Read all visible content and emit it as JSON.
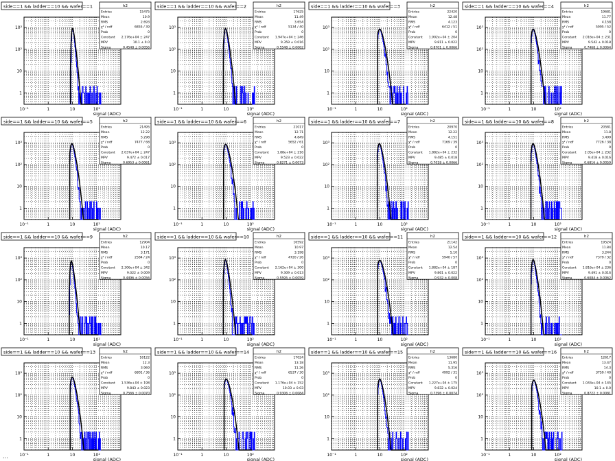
{
  "page": {
    "footer_text": "..."
  },
  "colors": {
    "histogram": "#0000ff",
    "fit": "#000000",
    "grid": "#000000",
    "background": "#ffffff"
  },
  "chart_data": [
    {
      "type": "histogram",
      "title": "side==1 && ladder==10 && wafer==1",
      "stats_name": "h2",
      "stats": [
        [
          "Entries",
          "15475"
        ],
        [
          "Mean",
          "10.9"
        ],
        [
          "RMS",
          "2.693"
        ],
        [
          "χ² / ndf",
          "6855 / 39"
        ],
        [
          "Prob",
          "0"
        ],
        [
          "Constant",
          "2.176e+04 ± 247"
        ],
        [
          "MPV",
          "10.1 ± 0.0"
        ],
        [
          "Sigma",
          "0.4548 ± 0.0056"
        ]
      ],
      "xlabel": "signal (ADC)",
      "xscale": "log",
      "yscale": "log",
      "xlim": [
        0.1,
        1000
      ],
      "ylim": [
        0.3,
        3000
      ],
      "xticks": [
        "10⁻¹",
        "1",
        "10",
        "10²"
      ],
      "yticks": [
        "1",
        "10",
        "10²",
        "10³"
      ],
      "grid": true,
      "mpv": 10.1,
      "sigma": 0.455,
      "peak": 1500
    },
    {
      "type": "histogram",
      "title": "side==1 && ladder==10 && wafer==2",
      "stats_name": "h2",
      "stats": [
        [
          "Entries",
          "17625"
        ],
        [
          "Mean",
          "11.49"
        ],
        [
          "RMS",
          "3.654"
        ],
        [
          "χ² / ndf",
          "5134 / 40"
        ],
        [
          "Prob",
          "0"
        ],
        [
          "Constant",
          "1.947e+04 ± 246"
        ],
        [
          "MPV",
          "9.359 ± 0.016"
        ],
        [
          "Sigma",
          "0.5548 ± 0.0062"
        ]
      ],
      "xlabel": "signal (ADC)",
      "xscale": "log",
      "yscale": "log",
      "xlim": [
        0.1,
        1000
      ],
      "ylim": [
        0.3,
        3000
      ],
      "xticks": [
        "10⁻¹",
        "1",
        "10",
        "10²"
      ],
      "yticks": [
        "1",
        "10",
        "10²",
        "10³"
      ],
      "grid": true,
      "mpv": 9.36,
      "sigma": 0.555,
      "peak": 1500
    },
    {
      "type": "histogram",
      "title": "side==1 && ladder==10 && wafer==3",
      "stats_name": "h2",
      "stats": [
        [
          "Entries",
          "22420"
        ],
        [
          "Mean",
          "12.48"
        ],
        [
          "RMS",
          "4.123"
        ],
        [
          "χ² / ndf",
          "6412 / 51"
        ],
        [
          "Prob",
          "0"
        ],
        [
          "Constant",
          "1.902e+04 ± 204"
        ],
        [
          "MPV",
          "9.811 ± 0.022"
        ],
        [
          "Sigma",
          "0.8701 ± 0.0066"
        ]
      ],
      "xlabel": "signal (ADC)",
      "xscale": "log",
      "yscale": "log",
      "xlim": [
        0.1,
        1000
      ],
      "ylim": [
        0.3,
        3000
      ],
      "xticks": [
        "10⁻¹",
        "1",
        "10",
        "10²"
      ],
      "yticks": [
        "1",
        "10",
        "10²",
        "10³"
      ],
      "grid": true,
      "mpv": 9.81,
      "sigma": 0.87,
      "peak": 1400
    },
    {
      "type": "histogram",
      "title": "side==1 && ladder==10 && wafer==4",
      "stats_name": "h2",
      "stats": [
        [
          "Entries",
          "19681"
        ],
        [
          "Mean",
          "11.77"
        ],
        [
          "RMS",
          "4.158"
        ],
        [
          "χ² / ndf",
          "5995 / 52"
        ],
        [
          "Prob",
          "0"
        ],
        [
          "Constant",
          "2.016e+04 ± 231"
        ],
        [
          "MPV",
          "9.542 ± 0.018"
        ],
        [
          "Sigma",
          "0.7468 ± 0.0064"
        ]
      ],
      "xlabel": "signal (ADC)",
      "xscale": "log",
      "yscale": "log",
      "xlim": [
        0.1,
        1000
      ],
      "ylim": [
        0.3,
        3000
      ],
      "xticks": [
        "10⁻¹",
        "1",
        "10",
        "10²"
      ],
      "yticks": [
        "1",
        "10",
        "10²",
        "10³"
      ],
      "grid": true,
      "mpv": 9.54,
      "sigma": 0.747,
      "peak": 1400
    },
    {
      "type": "histogram",
      "title": "side==1 && ladder==10 && wafer==5",
      "stats_name": "h2",
      "stats": [
        [
          "Entries",
          "21495"
        ],
        [
          "Mean",
          "12.22"
        ],
        [
          "RMS",
          "5.298"
        ],
        [
          "χ² / ndf",
          "7477 / 68"
        ],
        [
          "Prob",
          "0"
        ],
        [
          "Constant",
          "2.037e+04 ± 247"
        ],
        [
          "MPV",
          "9.472 ± 0.017"
        ],
        [
          "Sigma",
          "0.6953 ± 0.0061"
        ]
      ],
      "xlabel": "signal (ADC)",
      "xscale": "log",
      "yscale": "log",
      "xlim": [
        0.1,
        1000
      ],
      "ylim": [
        0.3,
        3000
      ],
      "xticks": [
        "10⁻¹",
        "1",
        "10",
        "10²"
      ],
      "yticks": [
        "1",
        "10",
        "10²",
        "10³"
      ],
      "grid": true,
      "mpv": 9.47,
      "sigma": 0.695,
      "peak": 1500
    },
    {
      "type": "histogram",
      "title": "side==1 && ladder==10 && wafer==6",
      "stats_name": "h2",
      "stats": [
        [
          "Entries",
          "21017"
        ],
        [
          "Mean",
          "12.71"
        ],
        [
          "RMS",
          "4.849"
        ],
        [
          "χ² / ndf",
          "5652 / 61"
        ],
        [
          "Prob",
          "0"
        ],
        [
          "Constant",
          "1.88e+04 ± 216"
        ],
        [
          "MPV",
          "9.523 ± 0.022"
        ],
        [
          "Sigma",
          "0.8271 ± 0.0073"
        ]
      ],
      "xlabel": "signal (ADC)",
      "xscale": "log",
      "yscale": "log",
      "xlim": [
        0.1,
        1000
      ],
      "ylim": [
        0.3,
        3000
      ],
      "xticks": [
        "10⁻¹",
        "1",
        "10",
        "10²"
      ],
      "yticks": [
        "1",
        "10",
        "10²",
        "10³"
      ],
      "grid": true,
      "mpv": 9.52,
      "sigma": 0.827,
      "peak": 1400
    },
    {
      "type": "histogram",
      "title": "side==1 && ladder==10 && wafer==7",
      "stats_name": "h2",
      "stats": [
        [
          "Entries",
          "20970"
        ],
        [
          "Mean",
          "12.22"
        ],
        [
          "RMS",
          "4.151"
        ],
        [
          "χ² / ndf",
          "7169 / 39"
        ],
        [
          "Prob",
          "0"
        ],
        [
          "Constant",
          "1.882e+04 ± 232"
        ],
        [
          "MPV",
          "9.485 ± 0.018"
        ],
        [
          "Sigma",
          "0.7018 ± 0.0066"
        ]
      ],
      "xlabel": "signal (ADC)",
      "xscale": "log",
      "yscale": "log",
      "xlim": [
        0.1,
        1000
      ],
      "ylim": [
        0.3,
        3000
      ],
      "xticks": [
        "10⁻¹",
        "1",
        "10",
        "10²"
      ],
      "yticks": [
        "1",
        "10",
        "10²",
        "10³"
      ],
      "grid": true,
      "mpv": 9.49,
      "sigma": 0.702,
      "peak": 1500
    },
    {
      "type": "histogram",
      "title": "side==1 && ladder==10 && wafer==8",
      "stats_name": "h2",
      "stats": [
        [
          "Entries",
          "20581"
        ],
        [
          "Mean",
          "11.8"
        ],
        [
          "RMS",
          "3.499"
        ],
        [
          "χ² / ndf",
          "7726 / 38"
        ],
        [
          "Prob",
          "0"
        ],
        [
          "Constant",
          "2.05e+04 ± 232"
        ],
        [
          "MPV",
          "9.418 ± 0.016"
        ],
        [
          "Sigma",
          "0.6816 ± 0.0059"
        ]
      ],
      "xlabel": "signal (ADC)",
      "xscale": "log",
      "yscale": "log",
      "xlim": [
        0.1,
        1000
      ],
      "ylim": [
        0.3,
        3000
      ],
      "xticks": [
        "10⁻¹",
        "1",
        "10",
        "10²"
      ],
      "yticks": [
        "1",
        "10",
        "10²",
        "10³"
      ],
      "grid": true,
      "mpv": 9.42,
      "sigma": 0.682,
      "peak": 1500
    },
    {
      "type": "histogram",
      "title": "side==1 && ladder==10 && wafer==9",
      "stats_name": "h2",
      "stats": [
        [
          "Entries",
          "12904"
        ],
        [
          "Mean",
          "10.17"
        ],
        [
          "RMS",
          "3.171"
        ],
        [
          "χ² / ndf",
          "2584 / 24"
        ],
        [
          "Prob",
          "0"
        ],
        [
          "Constant",
          "2.306e+04 ± 342"
        ],
        [
          "MPV",
          "9.022 ± 0.009"
        ],
        [
          "Sigma",
          "0.4496 ± 0.0056"
        ]
      ],
      "xlabel": "signal (ADC)",
      "xscale": "log",
      "yscale": "log",
      "xlim": [
        0.1,
        1000
      ],
      "ylim": [
        0.3,
        3000
      ],
      "xticks": [
        "10⁻¹",
        "1",
        "10",
        "10²"
      ],
      "yticks": [
        "1",
        "10",
        "10²",
        "10³"
      ],
      "grid": true,
      "mpv": 9.02,
      "sigma": 0.45,
      "peak": 1200
    },
    {
      "type": "histogram",
      "title": "side==1 && ladder==10 && wafer==10",
      "stats_name": "h2",
      "stats": [
        [
          "Entries",
          "16592"
        ],
        [
          "Mean",
          "10.97"
        ],
        [
          "RMS",
          "3.198"
        ],
        [
          "χ² / ndf",
          "4720 / 26"
        ],
        [
          "Prob",
          "0"
        ],
        [
          "Constant",
          "2.162e+04 ± 300"
        ],
        [
          "MPV",
          "9.309 ± 0.013"
        ],
        [
          "Sigma",
          "0.5595 ± 0.0059"
        ]
      ],
      "xlabel": "signal (ADC)",
      "xscale": "log",
      "yscale": "log",
      "xlim": [
        0.1,
        1000
      ],
      "ylim": [
        0.3,
        3000
      ],
      "xticks": [
        "10⁻¹",
        "1",
        "10",
        "10²"
      ],
      "yticks": [
        "1",
        "10",
        "10²",
        "10³"
      ],
      "grid": true,
      "mpv": 9.31,
      "sigma": 0.56,
      "peak": 1400
    },
    {
      "type": "histogram",
      "title": "side==1 && ladder==10 && wafer==11",
      "stats_name": "h2",
      "stats": [
        [
          "Entries",
          "21142"
        ],
        [
          "Mean",
          "12.54"
        ],
        [
          "RMS",
          "5.10"
        ],
        [
          "χ² / ndf",
          "5940 / 57"
        ],
        [
          "Prob",
          "0"
        ],
        [
          "Constant",
          "1.882e+04 ± 187"
        ],
        [
          "MPV",
          "9.861 ± 0.022"
        ],
        [
          "Sigma",
          "0.932 ± 0.008"
        ]
      ],
      "xlabel": "signal (ADC)",
      "xscale": "log",
      "yscale": "log",
      "xlim": [
        0.1,
        1000
      ],
      "ylim": [
        0.3,
        3000
      ],
      "xticks": [
        "10⁻¹",
        "1",
        "10",
        "10²"
      ],
      "yticks": [
        "1",
        "10",
        "10²",
        "10³"
      ],
      "grid": true,
      "mpv": 9.86,
      "sigma": 0.932,
      "peak": 1300
    },
    {
      "type": "histogram",
      "title": "side==1 && ladder==10 && wafer==12",
      "stats_name": "h2",
      "stats": [
        [
          "Entries",
          "19524"
        ],
        [
          "Mean",
          "11.84"
        ],
        [
          "RMS",
          "3.244"
        ],
        [
          "χ² / ndf",
          "7379 / 32"
        ],
        [
          "Prob",
          "0"
        ],
        [
          "Constant",
          "1.816e+04 ± 236"
        ],
        [
          "MPV",
          "9.491 ± 0.016"
        ],
        [
          "Sigma",
          "0.6084 ± 0.0062"
        ]
      ],
      "xlabel": "signal (ADC)",
      "xscale": "log",
      "yscale": "log",
      "xlim": [
        0.1,
        1000
      ],
      "ylim": [
        0.3,
        3000
      ],
      "xticks": [
        "10⁻¹",
        "1",
        "10",
        "10²"
      ],
      "yticks": [
        "1",
        "10",
        "10²",
        "10³"
      ],
      "grid": true,
      "mpv": 9.49,
      "sigma": 0.608,
      "peak": 1400
    },
    {
      "type": "histogram",
      "title": "side==1 && ladder==10 && wafer==13",
      "stats_name": "h2",
      "stats": [
        [
          "Entries",
          "16122"
        ],
        [
          "Mean",
          "12.3"
        ],
        [
          "RMS",
          "3.969"
        ],
        [
          "χ² / ndf",
          "6801 / 36"
        ],
        [
          "Prob",
          "0"
        ],
        [
          "Constant",
          "1.536e+04 ± 198"
        ],
        [
          "MPV",
          "9.843 ± 0.023"
        ],
        [
          "Sigma",
          "0.7566 ± 0.0070"
        ]
      ],
      "xlabel": "signal (ADC)",
      "xscale": "log",
      "yscale": "log",
      "xlim": [
        0.1,
        1000
      ],
      "ylim": [
        0.3,
        3000
      ],
      "xticks": [
        "10⁻¹",
        "1",
        "10",
        "10²"
      ],
      "yticks": [
        "1",
        "10",
        "10²",
        "10³"
      ],
      "grid": true,
      "mpv": 9.84,
      "sigma": 0.757,
      "peak": 1100
    },
    {
      "type": "histogram",
      "title": "side==1 && ladder==10 && wafer==14",
      "stats_name": "h2",
      "stats": [
        [
          "Entries",
          "17024"
        ],
        [
          "Mean",
          "13.18"
        ],
        [
          "RMS",
          "11.26"
        ],
        [
          "χ² / ndf",
          "6537 / 30"
        ],
        [
          "Prob",
          "0"
        ],
        [
          "Constant",
          "1.176e+04 ± 152"
        ],
        [
          "MPV",
          "10.03 ± 0.03"
        ],
        [
          "Sigma",
          "0.9306 ± 0.0084"
        ]
      ],
      "xlabel": "signal (ADC)",
      "xscale": "log",
      "yscale": "log",
      "xlim": [
        0.1,
        1000
      ],
      "ylim": [
        0.3,
        3000
      ],
      "xticks": [
        "10⁻¹",
        "1",
        "10",
        "10²"
      ],
      "yticks": [
        "1",
        "10",
        "10²",
        "10³"
      ],
      "grid": true,
      "mpv": 10.03,
      "sigma": 0.931,
      "peak": 900
    },
    {
      "type": "histogram",
      "title": "side==1 && ladder==10 && wafer==15",
      "stats_name": "h2",
      "stats": [
        [
          "Entries",
          "13680"
        ],
        [
          "Mean",
          "11.95"
        ],
        [
          "RMS",
          "5.316"
        ],
        [
          "χ² / ndf",
          "4992 / 31"
        ],
        [
          "Prob",
          "0"
        ],
        [
          "Constant",
          "1.227e+04 ± 175"
        ],
        [
          "MPV",
          "9.832 ± 0.024"
        ],
        [
          "Sigma",
          "0.7396 ± 0.0074"
        ]
      ],
      "xlabel": "signal (ADC)",
      "xscale": "log",
      "yscale": "log",
      "xlim": [
        0.1,
        1000
      ],
      "ylim": [
        0.3,
        3000
      ],
      "xticks": [
        "10⁻¹",
        "1",
        "10",
        "10²"
      ],
      "yticks": [
        "1",
        "10",
        "10²",
        "10³"
      ],
      "grid": true,
      "mpv": 9.83,
      "sigma": 0.74,
      "peak": 900
    },
    {
      "type": "histogram",
      "title": "side==1 && ladder==10 && wafer==16",
      "stats_name": "h2",
      "stats": [
        [
          "Entries",
          "12617"
        ],
        [
          "Mean",
          "13.47"
        ],
        [
          "RMS",
          "14.3"
        ],
        [
          "χ² / ndf",
          "3759 / 40"
        ],
        [
          "Prob",
          "0"
        ],
        [
          "Constant",
          "1.043e+04 ± 145"
        ],
        [
          "MPV",
          "10.1 ± 0.0"
        ],
        [
          "Sigma",
          "0.8722 ± 0.0081"
        ]
      ],
      "xlabel": "signal (ADC)",
      "xscale": "log",
      "yscale": "log",
      "xlim": [
        0.1,
        1000
      ],
      "ylim": [
        0.3,
        3000
      ],
      "xticks": [
        "10⁻¹",
        "1",
        "10",
        "10²"
      ],
      "yticks": [
        "1",
        "10",
        "10²",
        "10³"
      ],
      "grid": true,
      "mpv": 10.1,
      "sigma": 0.872,
      "peak": 800
    }
  ]
}
